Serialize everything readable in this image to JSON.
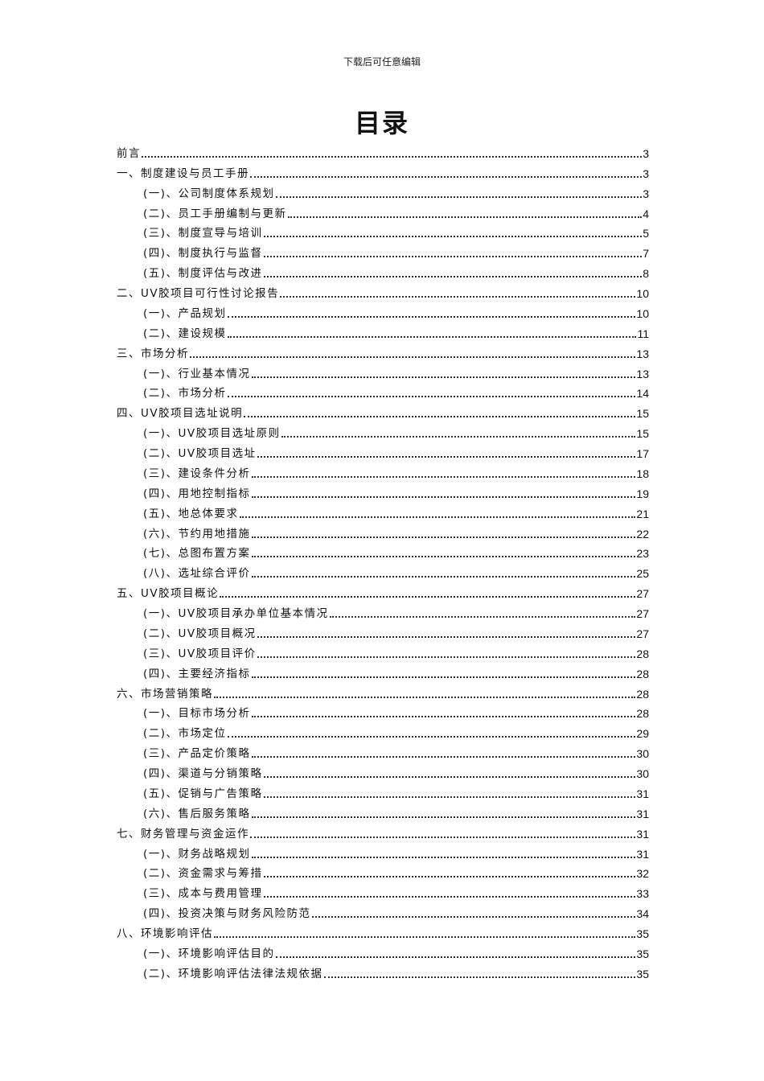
{
  "header": {
    "text": "下载后可任意编辑"
  },
  "title": "目录",
  "toc": [
    {
      "level": 1,
      "label": "前言",
      "page": "3"
    },
    {
      "level": 1,
      "label": "一、制度建设与员工手册",
      "page": "3"
    },
    {
      "level": 2,
      "label": "(一)、公司制度体系规划",
      "page": "3"
    },
    {
      "level": 2,
      "label": "(二)、员工手册编制与更新",
      "page": "4"
    },
    {
      "level": 2,
      "label": "(三)、制度宣导与培训",
      "page": "5"
    },
    {
      "level": 2,
      "label": "(四)、制度执行与监督",
      "page": "7"
    },
    {
      "level": 2,
      "label": "(五)、制度评估与改进",
      "page": "8"
    },
    {
      "level": 1,
      "label": "二、UV胶项目可行性讨论报告",
      "page": "10"
    },
    {
      "level": 2,
      "label": "(一)、产品规划",
      "page": "10"
    },
    {
      "level": 2,
      "label": "(二)、建设规模",
      "page": "11"
    },
    {
      "level": 1,
      "label": "三、市场分析",
      "page": "13"
    },
    {
      "level": 2,
      "label": "(一)、行业基本情况",
      "page": "13"
    },
    {
      "level": 2,
      "label": "(二)、市场分析",
      "page": "14"
    },
    {
      "level": 1,
      "label": "四、UV胶项目选址说明",
      "page": "15"
    },
    {
      "level": 2,
      "label": "(一)、UV胶项目选址原则",
      "page": "15"
    },
    {
      "level": 2,
      "label": "(二)、UV胶项目选址",
      "page": "17"
    },
    {
      "level": 2,
      "label": "(三)、建设条件分析",
      "page": "18"
    },
    {
      "level": 2,
      "label": "(四)、用地控制指标",
      "page": "19"
    },
    {
      "level": 2,
      "label": "(五)、地总体要求",
      "page": "21"
    },
    {
      "level": 2,
      "label": "(六)、节约用地措施",
      "page": "22"
    },
    {
      "level": 2,
      "label": "(七)、总图布置方案",
      "page": "23"
    },
    {
      "level": 2,
      "label": "(八)、选址综合评价",
      "page": "25"
    },
    {
      "level": 1,
      "label": "五、UV胶项目概论",
      "page": "27"
    },
    {
      "level": 2,
      "label": "(一)、UV胶项目承办单位基本情况",
      "page": "27"
    },
    {
      "level": 2,
      "label": "(二)、UV胶项目概况",
      "page": "27"
    },
    {
      "level": 2,
      "label": "(三)、UV胶项目评价",
      "page": "28"
    },
    {
      "level": 2,
      "label": "(四)、主要经济指标",
      "page": "28"
    },
    {
      "level": 1,
      "label": "六、市场营销策略",
      "page": "28"
    },
    {
      "level": 2,
      "label": "(一)、目标市场分析",
      "page": "28"
    },
    {
      "level": 2,
      "label": "(二)、市场定位",
      "page": "29"
    },
    {
      "level": 2,
      "label": "(三)、产品定价策略",
      "page": "30"
    },
    {
      "level": 2,
      "label": "(四)、渠道与分销策略",
      "page": "30"
    },
    {
      "level": 2,
      "label": "(五)、促销与广告策略",
      "page": "31"
    },
    {
      "level": 2,
      "label": "(六)、售后服务策略",
      "page": "31"
    },
    {
      "level": 1,
      "label": "七、财务管理与资金运作",
      "page": "31"
    },
    {
      "level": 2,
      "label": "(一)、财务战略规划",
      "page": "31"
    },
    {
      "level": 2,
      "label": "(二)、资金需求与筹措",
      "page": "32"
    },
    {
      "level": 2,
      "label": "(三)、成本与费用管理",
      "page": "33"
    },
    {
      "level": 2,
      "label": "(四)、投资决策与财务风险防范",
      "page": "34"
    },
    {
      "level": 1,
      "label": "八、环境影响评估",
      "page": "35"
    },
    {
      "level": 2,
      "label": "(一)、环境影响评估目的",
      "page": "35"
    },
    {
      "level": 2,
      "label": "(二)、环境影响评估法律法规依据",
      "page": "35"
    }
  ]
}
